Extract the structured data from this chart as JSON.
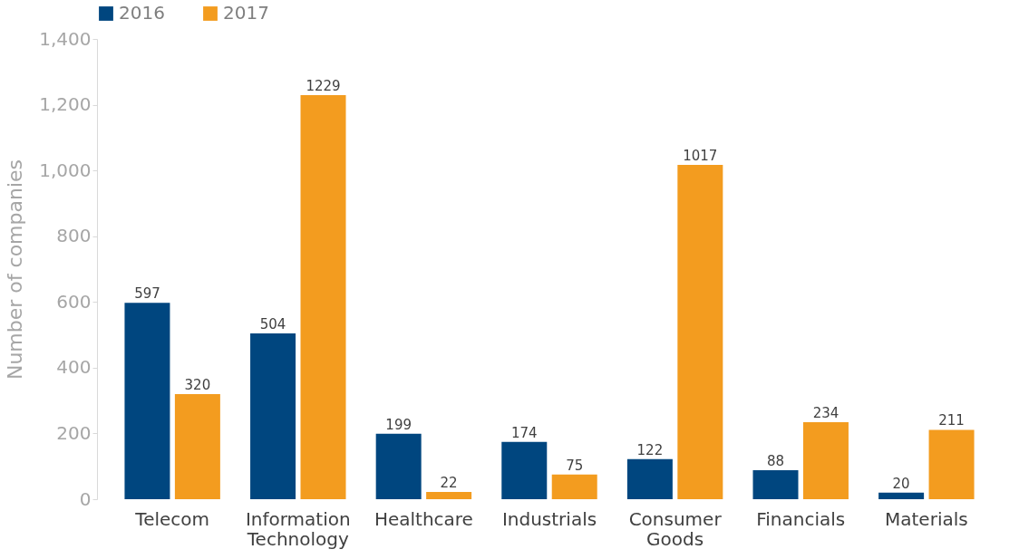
{
  "chart_data": {
    "type": "bar",
    "ylabel": "Number of companies",
    "categories": [
      "Telecom",
      "Information Technology",
      "Healthcare",
      "Industrials",
      "Consumer Goods",
      "Financials",
      "Materials"
    ],
    "series": [
      {
        "name": "2016",
        "color": "#00467f",
        "values": [
          597,
          504,
          199,
          174,
          122,
          88,
          20
        ]
      },
      {
        "name": "2017",
        "color": "#f39c1f",
        "values": [
          320,
          1229,
          22,
          75,
          1017,
          234,
          211
        ]
      }
    ],
    "ylim": [
      0,
      1400
    ],
    "yticks": [
      0,
      200,
      400,
      600,
      800,
      {
        "value": 1000,
        "label": "1,000"
      },
      {
        "value": 1200,
        "label": "1,200"
      },
      {
        "value": 1400,
        "label": "1,400"
      }
    ],
    "data_labels": true,
    "legend": "top",
    "grid": false
  }
}
